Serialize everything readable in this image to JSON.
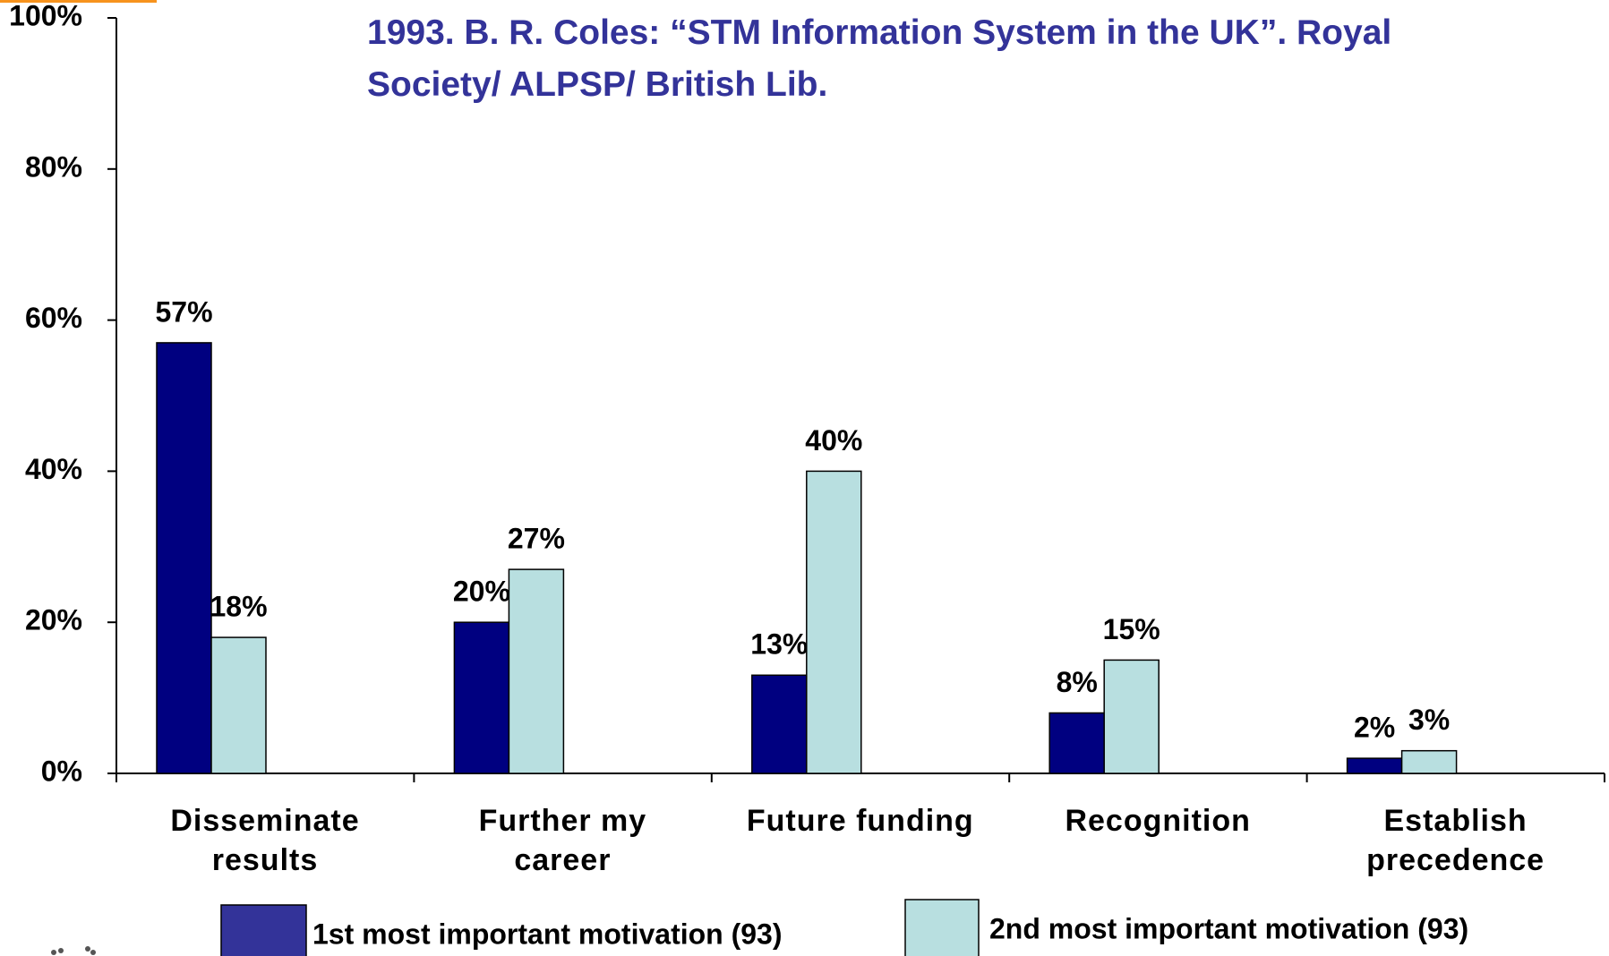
{
  "chart_data": {
    "type": "bar",
    "title": "1993. B. R. Coles: “STM Information System in the UK”. Royal Society/ ALPSP/ British Lib.",
    "categories": [
      "Disseminate\nresults",
      "Further my\ncareer",
      "Future funding",
      "Recognition",
      "Establish\nprecedence"
    ],
    "series": [
      {
        "name": "1st most important motivation (93)",
        "color": "#000080",
        "legend_color": "#333399",
        "values": [
          57,
          20,
          13,
          8,
          2
        ],
        "value_labels": [
          "57%",
          "20%",
          "13%",
          "8%",
          "2%"
        ]
      },
      {
        "name": "2nd most important motivation (93)",
        "color": "#b8dfe0",
        "values": [
          18,
          27,
          40,
          15,
          3
        ],
        "value_labels": [
          "18%",
          "27%",
          "40%",
          "15%",
          "3%"
        ]
      }
    ],
    "ylim": [
      0,
      100
    ],
    "yticks": [
      {
        "value": 0,
        "label": "0%"
      },
      {
        "value": 20,
        "label": "20%"
      },
      {
        "value": 40,
        "label": "40%"
      },
      {
        "value": 60,
        "label": "60%"
      },
      {
        "value": 80,
        "label": "80%"
      },
      {
        "value": 100,
        "label": "100%"
      }
    ],
    "grid": false
  }
}
